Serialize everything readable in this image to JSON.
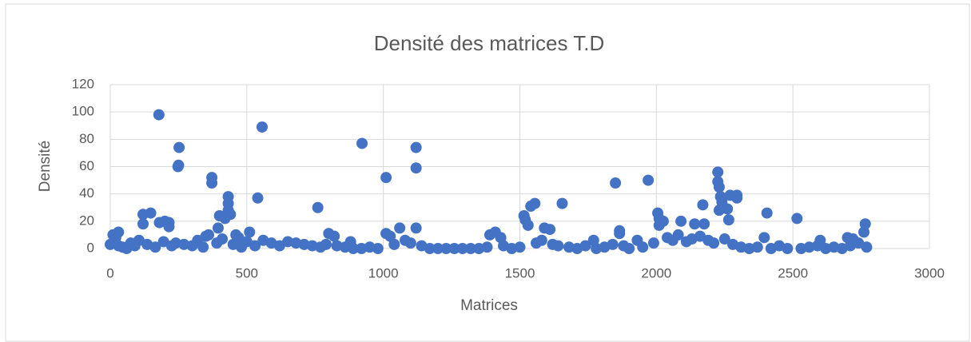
{
  "chart_data": {
    "type": "scatter",
    "title": "Densité des matrices T.D",
    "x_label": "Matrices",
    "y_label": "Densité",
    "color": "#4472c4",
    "grid": true,
    "xlim": [
      0,
      3000
    ],
    "xticks": [
      0,
      500,
      1000,
      1500,
      2000,
      2500,
      3000
    ],
    "ylim": [
      0,
      120
    ],
    "yticks": [
      0,
      20,
      40,
      60,
      80,
      100,
      120
    ],
    "x": [
      178,
      556,
      252,
      922,
      1120,
      250,
      248,
      372,
      372,
      1010,
      1120,
      540,
      432,
      432,
      432,
      400,
      420,
      440,
      395,
      120,
      148,
      120,
      180,
      200,
      215,
      215,
      760,
      1060,
      1120,
      1515,
      1520,
      1540,
      1555,
      1530,
      1590,
      1610,
      1655,
      1850,
      1865,
      1865,
      1970,
      2005,
      2010,
      2025,
      2010,
      2090,
      2140,
      2170,
      2175,
      2225,
      2225,
      2230,
      2235,
      2240,
      2230,
      2260,
      2265,
      2270,
      2295,
      2295,
      2405,
      2515,
      2765,
      2760,
      2395,
      1410,
      1390,
      1430,
      800,
      820,
      1010,
      1025,
      510,
      460,
      470,
      350,
      360,
      30,
      10,
      20,
      880,
      1770,
      1930,
      2600,
      2700,
      2720,
      0,
      15,
      30,
      45,
      60,
      75,
      90,
      105,
      135,
      165,
      195,
      225,
      240,
      270,
      300,
      320,
      340,
      390,
      410,
      450,
      480,
      500,
      530,
      560,
      590,
      620,
      650,
      680,
      710,
      740,
      770,
      790,
      830,
      860,
      890,
      920,
      950,
      980,
      1040,
      1080,
      1100,
      1140,
      1170,
      1200,
      1230,
      1260,
      1290,
      1320,
      1350,
      1380,
      1440,
      1470,
      1500,
      1560,
      1580,
      1620,
      1640,
      1680,
      1710,
      1740,
      1780,
      1810,
      1840,
      1880,
      1900,
      1950,
      1990,
      2040,
      2060,
      2080,
      2110,
      2130,
      2160,
      2190,
      2210,
      2250,
      2280,
      2310,
      2340,
      2370,
      2420,
      2450,
      2480,
      2530,
      2560,
      2590,
      2620,
      2650,
      2680,
      2710,
      2740,
      2770
    ],
    "values": [
      98,
      89,
      74,
      77,
      74,
      61,
      60,
      52,
      48,
      52,
      59,
      37,
      38,
      33,
      28,
      24,
      22,
      25,
      15,
      25,
      26,
      18,
      19,
      20,
      19,
      16,
      30,
      15,
      15,
      24,
      21,
      31,
      33,
      17,
      15,
      14,
      33,
      48,
      13,
      11,
      50,
      26,
      22,
      20,
      17,
      20,
      18,
      32,
      18,
      56,
      49,
      45,
      38,
      34,
      28,
      29,
      21,
      39,
      39,
      37,
      26,
      22,
      18,
      12,
      8,
      12,
      10,
      8,
      11,
      9,
      11,
      9,
      12,
      10,
      8,
      9,
      10,
      12,
      10,
      8,
      5,
      6,
      6,
      6,
      8,
      7,
      3,
      5,
      2,
      1,
      0,
      4,
      2,
      6,
      3,
      1,
      5,
      2,
      4,
      3,
      2,
      6,
      1,
      4,
      7,
      3,
      1,
      5,
      2,
      6,
      4,
      2,
      5,
      4,
      3,
      2,
      1,
      3,
      2,
      1,
      0,
      0,
      1,
      0,
      3,
      6,
      4,
      2,
      0,
      0,
      0,
      0,
      0,
      0,
      0,
      1,
      2,
      0,
      1,
      4,
      6,
      3,
      2,
      1,
      0,
      2,
      0,
      1,
      3,
      2,
      0,
      1,
      4,
      8,
      6,
      10,
      5,
      7,
      9,
      6,
      4,
      7,
      3,
      1,
      0,
      1,
      0,
      2,
      0,
      0,
      1,
      2,
      0,
      1,
      0,
      2,
      4,
      1
    ]
  }
}
